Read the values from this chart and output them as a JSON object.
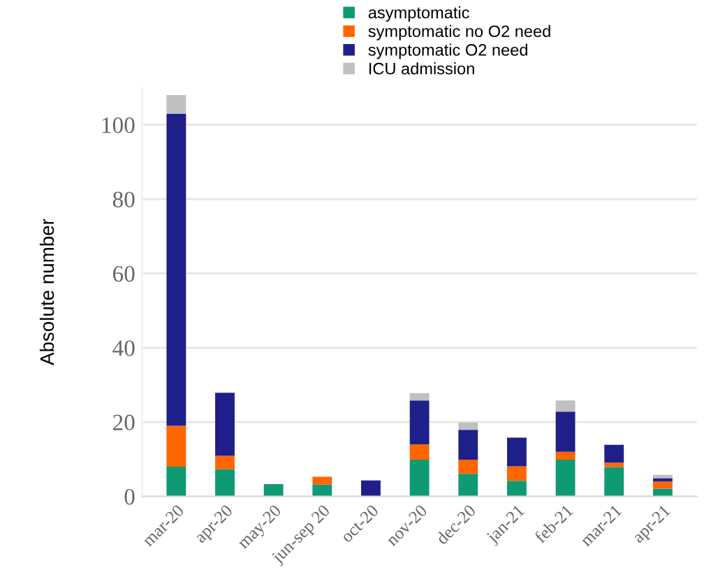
{
  "chart_data": {
    "type": "bar",
    "stacked": true,
    "ylabel": "Absolute number",
    "categories": [
      "mar-20",
      "apr-20",
      "may-20",
      "jun-sep 20",
      "oct-20",
      "nov-20",
      "dec-20",
      "jan-21",
      "feb-21",
      "mar-21",
      "apr-21"
    ],
    "series": [
      {
        "name": "asymptomatic",
        "color": "#0e9a72",
        "values": [
          8,
          7.3,
          3.3,
          3.2,
          0,
          9.9,
          6.1,
          4.2,
          9.9,
          7.9,
          2.1
        ]
      },
      {
        "name": "symptomatic no O2 need",
        "color": "#ff6600",
        "values": [
          11,
          3.6,
          0,
          2.1,
          0,
          4.1,
          3.8,
          3.9,
          2.1,
          1.2,
          1.9
        ]
      },
      {
        "name": "symptomatic O2 need",
        "color": "#1f1f8a",
        "values": [
          84,
          17,
          0,
          0,
          4.3,
          11.8,
          8,
          7.7,
          10.8,
          4.8,
          0.9
        ]
      },
      {
        "name": "ICU admission",
        "color": "#c0c0c0",
        "values": [
          5,
          0,
          0,
          0,
          0,
          2,
          2,
          0,
          3,
          0,
          0.9
        ]
      }
    ],
    "ylim": [
      0,
      110
    ],
    "yticks": [
      0,
      20,
      40,
      60,
      80,
      100
    ],
    "grid": "y",
    "legend": "top"
  }
}
